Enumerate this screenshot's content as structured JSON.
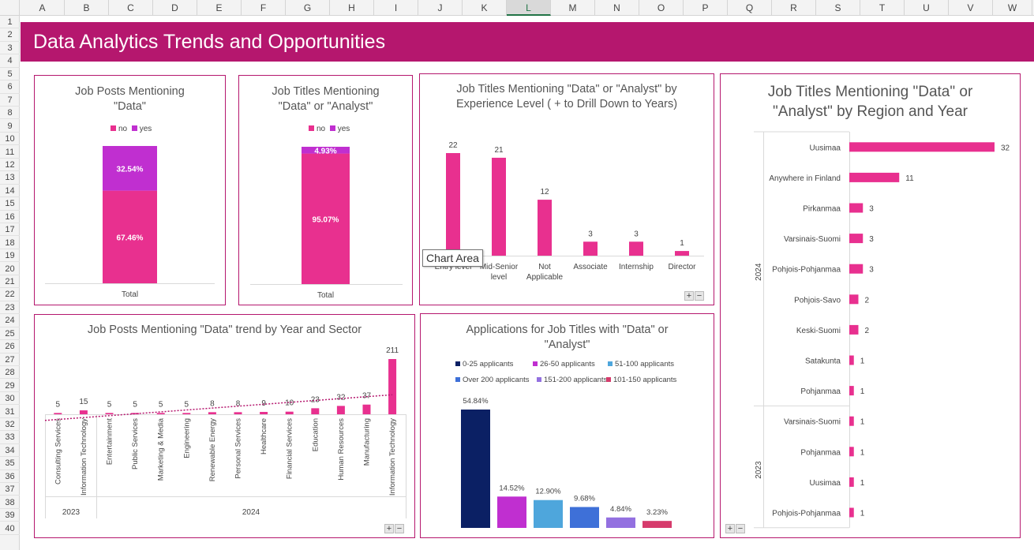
{
  "sheet": {
    "columns": [
      "A",
      "B",
      "C",
      "D",
      "E",
      "F",
      "G",
      "H",
      "I",
      "J",
      "K",
      "L",
      "M",
      "N",
      "O",
      "P",
      "Q",
      "R",
      "S",
      "T",
      "U",
      "V",
      "W"
    ],
    "selected_column": "L",
    "rows": [
      "1",
      "2",
      "3",
      "4",
      "5",
      "6",
      "7",
      "8",
      "9",
      "10",
      "11",
      "12",
      "13",
      "14",
      "15",
      "16",
      "17",
      "18",
      "19",
      "20",
      "21",
      "22",
      "23",
      "24",
      "25",
      "26",
      "27",
      "28",
      "29",
      "30",
      "31",
      "32",
      "33",
      "34",
      "35",
      "36",
      "37",
      "38",
      "39",
      "40"
    ]
  },
  "dashboard": {
    "title": "Data Analytics Trends and Opportunities"
  },
  "colors": {
    "brand": "#b5176e",
    "pink": "#e8308f",
    "purple": "#c02fd0",
    "navy": "#0b2064",
    "sky": "#4ea6dc",
    "blue": "#3e70d8",
    "lavender": "#9370e0",
    "rose": "#d63b6c"
  },
  "tooltip": {
    "text": "Chart Area"
  },
  "zoom": {
    "plus": "+",
    "minus": "−"
  },
  "charts": {
    "posts_data": {
      "title": "Job Posts Mentioning \"Data\"",
      "legend": [
        "no",
        "yes"
      ],
      "category": "Total"
    },
    "titles_data_analyst": {
      "title": "Job Titles Mentioning \"Data\" or \"Analyst\"",
      "legend": [
        "no",
        "yes"
      ],
      "category": "Total"
    },
    "experience": {
      "title": "Job Titles Mentioning \"Data\" or \"Analyst\" by Experience Level ( + to Drill Down to Years)"
    },
    "region": {
      "title": "Job Titles Mentioning \"Data\" or \"Analyst\" by Region and Year",
      "years": [
        "2024",
        "2023"
      ]
    },
    "sector": {
      "title": "Job Posts Mentioning \"Data\" trend by Year and Sector",
      "years": [
        "2023",
        "2024"
      ]
    },
    "applications": {
      "title": "Applications for Job Titles with \"Data\" or \"Analyst\""
    }
  },
  "chart_data": [
    {
      "type": "bar",
      "stacked": true,
      "percent": true,
      "title": "Job Posts Mentioning \"Data\"",
      "categories": [
        "Total"
      ],
      "series": [
        {
          "name": "no",
          "values": [
            67.46
          ],
          "label": "67.46%",
          "color": "#e8308f"
        },
        {
          "name": "yes",
          "values": [
            32.54
          ],
          "label": "32.54%",
          "color": "#c02fd0"
        }
      ]
    },
    {
      "type": "bar",
      "stacked": true,
      "percent": true,
      "title": "Job Titles Mentioning \"Data\" or \"Analyst\"",
      "categories": [
        "Total"
      ],
      "series": [
        {
          "name": "no",
          "values": [
            95.07
          ],
          "label": "95.07%",
          "color": "#e8308f"
        },
        {
          "name": "yes",
          "values": [
            4.93
          ],
          "label": "4.93%",
          "color": "#c02fd0"
        }
      ]
    },
    {
      "type": "bar",
      "title": "Job Titles Mentioning \"Data\" or \"Analyst\" by Experience Level ( + to Drill Down to Years)",
      "categories": [
        "Entry level",
        "Mid-Senior level",
        "Not Applicable",
        "Associate",
        "Internship",
        "Director"
      ],
      "values": [
        22,
        21,
        12,
        3,
        3,
        1
      ],
      "ylim": [
        0,
        22
      ]
    },
    {
      "type": "bar",
      "orientation": "horizontal",
      "title": "Job Titles Mentioning \"Data\" or \"Analyst\" by Region and Year",
      "groups": [
        {
          "year": "2024",
          "categories": [
            "Uusimaa",
            "Anywhere in Finland",
            "Pirkanmaa",
            "Varsinais-Suomi",
            "Pohjois-Pohjanmaa",
            "Pohjois-Savo",
            "Keski-Suomi",
            "Satakunta",
            "Pohjanmaa"
          ],
          "values": [
            32,
            11,
            3,
            3,
            3,
            2,
            2,
            1,
            1
          ]
        },
        {
          "year": "2023",
          "categories": [
            "Varsinais-Suomi",
            "Pohjanmaa",
            "Uusimaa",
            "Pohjois-Pohjanmaa"
          ],
          "values": [
            1,
            1,
            1,
            1
          ]
        }
      ],
      "xlim": [
        0,
        32
      ]
    },
    {
      "type": "bar",
      "trendline": "linear",
      "title": "Job Posts Mentioning \"Data\" trend by Year and Sector",
      "groups": [
        {
          "year": "2023",
          "categories": [
            "Consulting Services",
            "Information Technology"
          ],
          "values": [
            5,
            15
          ]
        },
        {
          "year": "2024",
          "categories": [
            "Entertainment",
            "Public Services",
            "Marketing & Media",
            "Engineering",
            "Renewable Energy",
            "Personal Services",
            "Healthcare",
            "Financial Services",
            "Education",
            "Human Resources",
            "Manufacturing",
            "Information Technology"
          ],
          "values": [
            5,
            5,
            5,
            5,
            8,
            8,
            9,
            10,
            23,
            32,
            37,
            211
          ]
        }
      ],
      "ylim": [
        0,
        211
      ]
    },
    {
      "type": "bar",
      "percent": true,
      "title": "Applications for Job Titles with \"Data\" or \"Analyst\"",
      "legend_order": [
        "0-25 applicants",
        "26-50 applicants",
        "51-100 applicants",
        "Over 200 applicants",
        "151-200 applicants",
        "101-150 applicants"
      ],
      "categories": [
        "0-25 applicants",
        "26-50 applicants",
        "51-100 applicants",
        "Over 200 applicants",
        "151-200 applicants",
        "101-150 applicants"
      ],
      "values": [
        54.84,
        14.52,
        12.9,
        9.68,
        4.84,
        3.23
      ],
      "labels": [
        "54.84%",
        "14.52%",
        "12.90%",
        "9.68%",
        "4.84%",
        "3.23%"
      ],
      "colors": [
        "#0b2064",
        "#c02fd0",
        "#4ea6dc",
        "#3e70d8",
        "#9370e0",
        "#d63b6c"
      ]
    }
  ]
}
